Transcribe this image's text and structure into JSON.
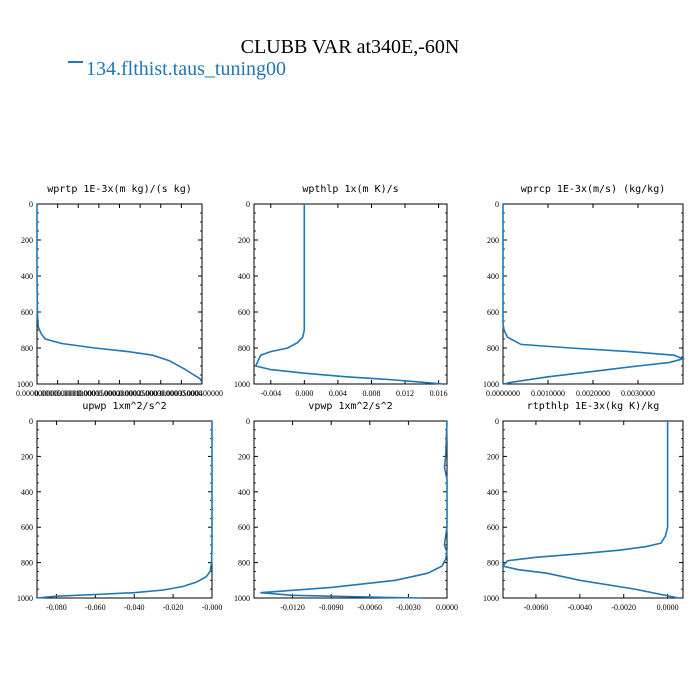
{
  "title": "CLUBB VAR at340E,-60N",
  "legend": {
    "label": "134.flthist.taus_tuning00",
    "color": "#1f77b4"
  },
  "chart_data": [
    {
      "type": "line",
      "title": "wprtp  1E-3x(m kg)/(s kg)",
      "xlim": [
        0.0,
        0.0004
      ],
      "ylim": [
        1000,
        0
      ],
      "xticks": [
        0.0,
        5e-05,
        0.0001,
        0.00015,
        0.0002,
        0.00025,
        0.0003,
        0.00035,
        0.0004
      ],
      "xtick_labels": [
        "0.000000000",
        "0.0000500000",
        "0.000100000",
        "0.000150000",
        "0.000200000",
        "0.000250000",
        "0.000300000",
        "0.000350000",
        "0.000400000"
      ],
      "yticks": [
        0,
        200,
        400,
        600,
        800,
        1000
      ],
      "series": [
        {
          "x": [
            0.0,
            0.0,
            1e-06,
            3e-06,
            6e-06,
            1e-05,
            2e-05,
            6e-05,
            0.00014,
            0.00022,
            0.00028,
            0.00032,
            0.00036,
            0.00038,
            0.000395,
            0.0004
          ],
          "y": [
            0,
            400,
            600,
            680,
            700,
            720,
            750,
            775,
            800,
            820,
            840,
            870,
            920,
            950,
            970,
            990
          ]
        }
      ]
    },
    {
      "type": "line",
      "title": "wpthlp  1x(m K)/s",
      "xlim": [
        -0.006,
        0.017
      ],
      "ylim": [
        1000,
        0
      ],
      "xticks": [
        -0.004,
        0.0,
        0.004,
        0.008,
        0.012,
        0.016
      ],
      "xtick_labels": [
        "-0.004",
        "0.000",
        "0.004",
        "0.008",
        "0.012",
        "0.016"
      ],
      "yticks": [
        0,
        200,
        400,
        600,
        800,
        1000
      ],
      "series": [
        {
          "x": [
            0.0,
            0.0,
            0.0,
            0.0,
            -0.0002,
            -0.0008,
            -0.002,
            -0.004,
            -0.0052,
            -0.0058,
            -0.004,
            0.0,
            0.005,
            0.01,
            0.014,
            0.0165
          ],
          "y": [
            0,
            240,
            500,
            700,
            740,
            770,
            800,
            820,
            840,
            900,
            920,
            940,
            960,
            975,
            990,
            1000
          ]
        }
      ]
    },
    {
      "type": "line",
      "title": "wprcp  1E-3x(m/s) (kg/kg)",
      "xlim": [
        0.0,
        0.004
      ],
      "ylim": [
        1000,
        0
      ],
      "xticks": [
        0.0,
        0.001,
        0.002,
        0.003
      ],
      "xtick_labels": [
        "0.0000000",
        "0.0010000",
        "0.0020000",
        "0.0030000"
      ],
      "yticks": [
        0,
        200,
        400,
        600,
        800,
        1000
      ],
      "series": [
        {
          "x": [
            0.0,
            0.0,
            2e-05,
            0.0001,
            0.0004,
            0.0015,
            0.0028,
            0.0038,
            0.004,
            0.0037,
            0.003,
            0.002,
            0.001,
            0.0002,
            0.0
          ],
          "y": [
            0,
            660,
            700,
            740,
            780,
            800,
            820,
            840,
            860,
            880,
            900,
            930,
            960,
            990,
            1000
          ]
        }
      ]
    },
    {
      "type": "line",
      "title": "upwp  1xm^2/s^2",
      "xlim": [
        -0.09,
        0.0
      ],
      "ylim": [
        1000,
        0
      ],
      "xticks": [
        -0.08,
        -0.06,
        -0.04,
        -0.02,
        0.0
      ],
      "xtick_labels": [
        "-0.080",
        "-0.060",
        "-0.040",
        "-0.020",
        "-0.000"
      ],
      "yticks": [
        0,
        200,
        400,
        600,
        800,
        1000
      ],
      "series": [
        {
          "x": [
            0.0,
            0.0,
            -0.0002,
            -0.001,
            -0.003,
            -0.008,
            -0.015,
            -0.025,
            -0.04,
            -0.06,
            -0.08,
            -0.09
          ],
          "y": [
            0,
            700,
            800,
            850,
            880,
            910,
            935,
            955,
            970,
            980,
            990,
            1000
          ]
        }
      ]
    },
    {
      "type": "line",
      "title": "vpwp  1xm^2/s^2",
      "xlim": [
        -0.015,
        0.0
      ],
      "ylim": [
        1000,
        0
      ],
      "xticks": [
        -0.012,
        -0.009,
        -0.006,
        -0.003,
        0.0
      ],
      "xtick_labels": [
        "-0.0120",
        "-0.0090",
        "-0.0060",
        "-0.0030",
        "0.0000"
      ],
      "yticks": [
        0,
        200,
        400,
        600,
        800,
        1000
      ],
      "series": [
        {
          "x": [
            0.0,
            -0.0001,
            -0.0002,
            0.0,
            0.0,
            -0.0002,
            0.0,
            -0.0001,
            -0.0004,
            -0.0015,
            -0.004,
            -0.009,
            -0.0145,
            -0.012,
            -0.006,
            -0.002
          ],
          "y": [
            0,
            200,
            260,
            330,
            600,
            700,
            740,
            780,
            820,
            860,
            900,
            940,
            970,
            985,
            995,
            1000
          ]
        }
      ]
    },
    {
      "type": "line",
      "title": "rtpthlp  1E-3x(kg K)/kg",
      "xlim": [
        -0.0075,
        0.0007
      ],
      "ylim": [
        1000,
        0
      ],
      "xticks": [
        -0.006,
        -0.004,
        -0.002,
        0.0
      ],
      "xtick_labels": [
        "-0.0060",
        "-0.0040",
        "-0.0020",
        "0.0000"
      ],
      "yticks": [
        0,
        200,
        400,
        600,
        800,
        1000
      ],
      "series": [
        {
          "x": [
            0.0,
            0.0,
            -0.0001,
            -0.0003,
            -0.001,
            -0.0022,
            -0.004,
            -0.006,
            -0.0073,
            -0.0075,
            -0.0068,
            -0.0055,
            -0.004,
            -0.0015,
            0.0005
          ],
          "y": [
            0,
            600,
            650,
            690,
            710,
            730,
            750,
            770,
            790,
            820,
            840,
            860,
            900,
            950,
            1000
          ]
        }
      ]
    }
  ]
}
